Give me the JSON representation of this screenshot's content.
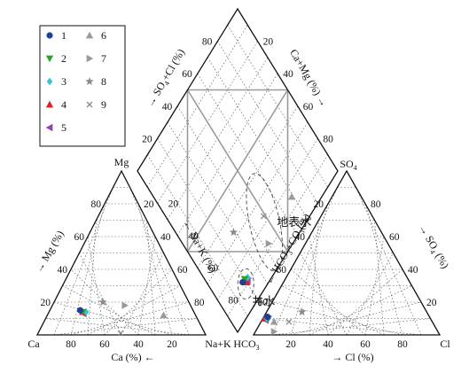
{
  "chart_data": {
    "type": "piper",
    "colors": {
      "s1": "#1f3f9a",
      "s2": "#2aa52a",
      "s3": "#39c2d8",
      "s4": "#e02020",
      "s5": "#8e44ad",
      "s6": "#9a9a9a",
      "s7": "#9a9a9a",
      "s8": "#8a8a8a",
      "s9": "#8a8a8a"
    },
    "legend": [
      {
        "key": "s1",
        "label": "1",
        "shape": "circle"
      },
      {
        "key": "s2",
        "label": "2",
        "shape": "tri-down"
      },
      {
        "key": "s3",
        "label": "3",
        "shape": "diamond"
      },
      {
        "key": "s4",
        "label": "4",
        "shape": "tri-up"
      },
      {
        "key": "s5",
        "label": "5",
        "shape": "tri-left"
      },
      {
        "key": "s6",
        "label": "6",
        "shape": "tri-up"
      },
      {
        "key": "s7",
        "label": "7",
        "shape": "tri-right"
      },
      {
        "key": "s8",
        "label": "8",
        "shape": "star"
      },
      {
        "key": "s9",
        "label": "9",
        "shape": "cross"
      }
    ],
    "cation_labels": {
      "mg": "Mg",
      "ca": "Ca",
      "na": "Na+K"
    },
    "anion_labels": {
      "so4": "SO",
      "so4_sub": "4",
      "hco3": "HCO",
      "hco3_sub": "3",
      "cl": "Cl"
    },
    "ticks": [
      "20",
      "40",
      "60",
      "80"
    ],
    "axis_titles": {
      "mg": "→ Mg (%)",
      "ca": "Ca (%) ←",
      "nak": "← Na+K (%)",
      "cl": "→ Cl (%)",
      "so4_right": "→ SO",
      "so4_right_tail": "(%)",
      "hco3co3": "← HCO",
      "hco3co3_mid": "+CO",
      "hco3co3_tail": "(%)",
      "so4cl": "→ SO",
      "so4cl_tail": "+Cl (%)",
      "camg": "Ca+Mg (%) →"
    },
    "fields": {
      "well": "井水",
      "surface": "地表水"
    },
    "cations": [
      {
        "series": "s1",
        "ca": 67,
        "mg": 15
      },
      {
        "series": "s2",
        "ca": 66,
        "mg": 14
      },
      {
        "series": "s3",
        "ca": 64,
        "mg": 14
      },
      {
        "series": "s4",
        "ca": 66,
        "mg": 14
      },
      {
        "series": "s5",
        "ca": 66,
        "mg": 13
      },
      {
        "series": "s6",
        "ca": 19,
        "mg": 12
      },
      {
        "series": "s7",
        "ca": 39,
        "mg": 18
      },
      {
        "series": "s8",
        "ca": 51,
        "mg": 20
      },
      {
        "series": "s9",
        "ca": 50,
        "mg": 1
      }
    ],
    "anions": [
      {
        "series": "s1",
        "so4": 11,
        "cl": 2
      },
      {
        "series": "s2",
        "so4": 10,
        "cl": 3
      },
      {
        "series": "s3",
        "so4": 10,
        "cl": 2
      },
      {
        "series": "s4",
        "so4": 10,
        "cl": 1
      },
      {
        "series": "s5",
        "so4": 9,
        "cl": 2
      },
      {
        "series": "s6",
        "so4": 8,
        "cl": 7
      },
      {
        "series": "s7",
        "so4": 2,
        "cl": 10
      },
      {
        "series": "s8",
        "so4": 14,
        "cl": 19
      },
      {
        "series": "s9",
        "so4": 8,
        "cl": 15
      }
    ]
  }
}
